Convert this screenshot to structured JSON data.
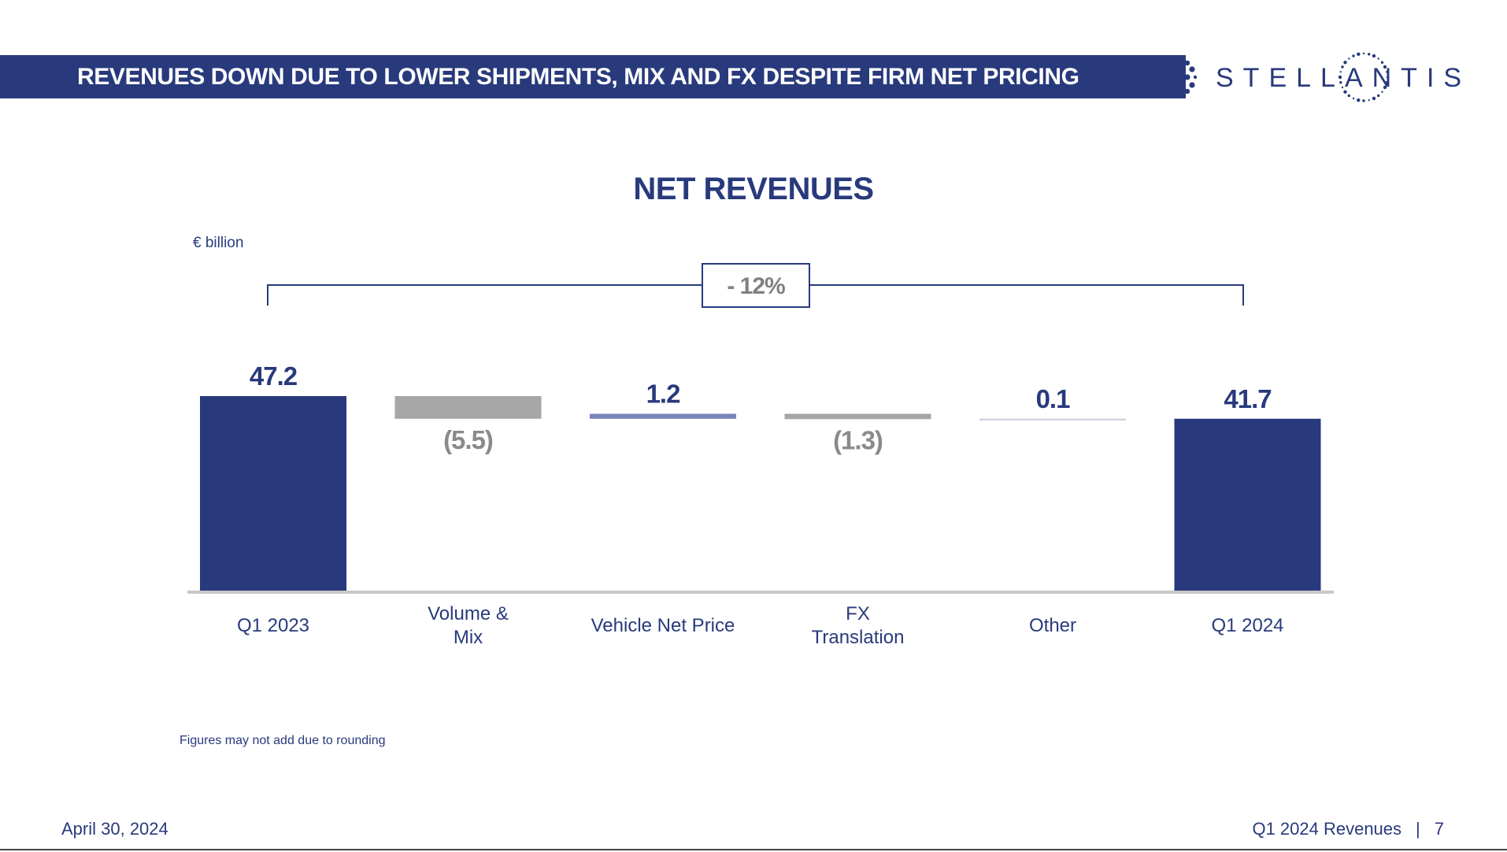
{
  "header": {
    "title": "REVENUES DOWN DUE TO LOWER SHIPMENTS, MIX AND FX DESPITE FIRM NET PRICING",
    "logo_text": "STELLANTIS",
    "band_color": "#283a7c"
  },
  "chart_data": {
    "type": "bar",
    "subtype": "waterfall",
    "title": "NET REVENUES",
    "unit": "€ billion",
    "categories": [
      "Q1 2023",
      "Volume & Mix",
      "Vehicle Net Price",
      "FX Translation",
      "Other",
      "Q1 2024"
    ],
    "values": [
      47.2,
      -5.5,
      1.2,
      -1.3,
      0.1,
      41.7
    ],
    "value_labels": [
      "47.2",
      "(5.5)",
      "1.2",
      "(1.3)",
      "0.1",
      "41.7"
    ],
    "bar_kinds": [
      "total",
      "decrease",
      "increase",
      "decrease",
      "increase",
      "total"
    ],
    "colors": {
      "total": "#283a7c",
      "decrease": "#a6a6a6",
      "increase": "#7b84b8",
      "increase_small": "#c9cde0",
      "axis": "#c8c8c8"
    },
    "change_annotation": "- 12%",
    "ylim": [
      0,
      50
    ]
  },
  "footnote": "Figures may not add due to rounding",
  "footer": {
    "date": "April 30, 2024",
    "section": "Q1 2024 Revenues",
    "separator": "|",
    "page_number": "7"
  }
}
